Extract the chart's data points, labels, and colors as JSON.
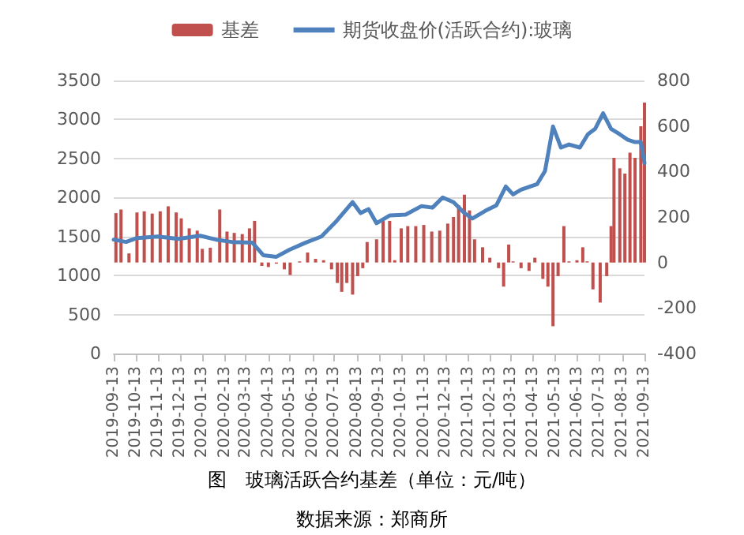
{
  "chart_data": {
    "type": "bar",
    "title": "图　玻璃活跃合约基差（单位：元/吨）",
    "annotations": [
      "数据来源：郑商所"
    ],
    "legend": "top",
    "grid": "y",
    "marker": "none",
    "xlim": [
      "2019-09-13",
      "2021-09-13"
    ],
    "xticks": [
      "2019-09-13",
      "2019-10-13",
      "2019-11-13",
      "2019-12-13",
      "2020-01-13",
      "2020-02-13",
      "2020-03-13",
      "2020-04-13",
      "2020-05-13",
      "2020-06-13",
      "2020-07-13",
      "2020-08-13",
      "2020-09-13",
      "2020-10-13",
      "2020-11-13",
      "2020-12-13",
      "2021-01-13",
      "2021-02-13",
      "2021-03-13",
      "2021-04-13",
      "2021-05-13",
      "2021-06-13",
      "2021-07-13",
      "2021-08-13",
      "2021-09-13"
    ],
    "ylim": [
      0,
      3500
    ],
    "yticks": [
      0,
      500,
      1000,
      1500,
      2000,
      2500,
      3000,
      3500
    ],
    "y2lim": [
      -400,
      800
    ],
    "y2ticks": [
      -400,
      -200,
      0,
      200,
      400,
      600,
      800
    ],
    "series": [
      {
        "name": "基差",
        "axis": "y2",
        "color": "#c0504d",
        "x": [
          "2019-09-16",
          "2019-09-23",
          "2019-10-04",
          "2019-10-15",
          "2019-10-25",
          "2019-11-05",
          "2019-11-16",
          "2019-11-27",
          "2019-12-08",
          "2019-12-15",
          "2019-12-26",
          "2020-01-06",
          "2020-01-13",
          "2020-01-24",
          "2020-02-06",
          "2020-02-16",
          "2020-02-26",
          "2020-03-08",
          "2020-03-18",
          "2020-03-25",
          "2020-04-04",
          "2020-04-13",
          "2020-04-24",
          "2020-05-05",
          "2020-05-13",
          "2020-05-26",
          "2020-06-06",
          "2020-06-17",
          "2020-06-28",
          "2020-07-09",
          "2020-07-17",
          "2020-07-23",
          "2020-07-30",
          "2020-08-07",
          "2020-08-14",
          "2020-08-21",
          "2020-08-27",
          "2020-09-09",
          "2020-09-18",
          "2020-09-27",
          "2020-10-04",
          "2020-10-13",
          "2020-10-22",
          "2020-11-02",
          "2020-11-13",
          "2020-11-24",
          "2020-12-05",
          "2020-12-16",
          "2020-12-24",
          "2020-12-31",
          "2021-01-08",
          "2021-01-15",
          "2021-01-22",
          "2021-02-02",
          "2021-02-12",
          "2021-02-24",
          "2021-03-03",
          "2021-03-10",
          "2021-03-16",
          "2021-03-27",
          "2021-04-07",
          "2021-04-15",
          "2021-04-26",
          "2021-05-03",
          "2021-05-10",
          "2021-05-17",
          "2021-05-25",
          "2021-06-01",
          "2021-06-12",
          "2021-06-20",
          "2021-06-26",
          "2021-07-04",
          "2021-07-14",
          "2021-07-23",
          "2021-07-29",
          "2021-08-02",
          "2021-08-10",
          "2021-08-17",
          "2021-08-24",
          "2021-08-31",
          "2021-09-08",
          "2021-09-13"
        ],
        "values": [
          217,
          233,
          40,
          220,
          225,
          215,
          225,
          247,
          220,
          194,
          150,
          140,
          60,
          65,
          233,
          136,
          130,
          125,
          150,
          183,
          -15,
          -20,
          -5,
          -30,
          -55,
          5,
          44,
          16,
          10,
          -30,
          -90,
          -129,
          -90,
          -141,
          -60,
          -25,
          90,
          102,
          183,
          183,
          10,
          150,
          160,
          160,
          165,
          136,
          140,
          171,
          200,
          252,
          298,
          229,
          102,
          67,
          21,
          -25,
          -106,
          79,
          5,
          -25,
          -37,
          21,
          -72,
          -106,
          -280,
          -60,
          160,
          5,
          10,
          67,
          5,
          -118,
          -176,
          -60,
          160,
          460,
          414,
          391,
          483,
          460,
          599,
          703
        ]
      },
      {
        "name": "期货收盘价(活跃合约):玻璃",
        "type": "line",
        "color": "#4f81bd",
        "x": [
          "2019-09-13",
          "2019-09-30",
          "2019-10-15",
          "2019-11-13",
          "2019-12-11",
          "2020-01-10",
          "2020-02-01",
          "2020-02-23",
          "2020-03-22",
          "2020-04-06",
          "2020-04-24",
          "2020-05-12",
          "2020-06-03",
          "2020-06-25",
          "2020-07-16",
          "2020-08-07",
          "2020-08-18",
          "2020-08-29",
          "2020-09-09",
          "2020-09-27",
          "2020-10-19",
          "2020-11-10",
          "2020-11-25",
          "2020-12-09",
          "2020-12-24",
          "2021-01-08",
          "2021-01-19",
          "2021-02-06",
          "2021-02-21",
          "2021-03-06",
          "2021-03-16",
          "2021-03-27",
          "2021-04-18",
          "2021-04-29",
          "2021-05-10",
          "2021-05-21",
          "2021-06-01",
          "2021-06-16",
          "2021-06-27",
          "2021-07-07",
          "2021-07-18",
          "2021-07-29",
          "2021-08-10",
          "2021-08-21",
          "2021-08-31",
          "2021-09-08",
          "2021-09-13"
        ],
        "values": [
          1460,
          1430,
          1480,
          1500,
          1470,
          1510,
          1460,
          1430,
          1420,
          1260,
          1240,
          1330,
          1420,
          1500,
          1700,
          1940,
          1800,
          1850,
          1670,
          1770,
          1780,
          1890,
          1870,
          2000,
          1940,
          1800,
          1730,
          1830,
          1900,
          2140,
          2040,
          2100,
          2170,
          2340,
          2910,
          2640,
          2680,
          2640,
          2810,
          2880,
          3080,
          2880,
          2810,
          2740,
          2710,
          2710,
          2440
        ]
      }
    ]
  }
}
